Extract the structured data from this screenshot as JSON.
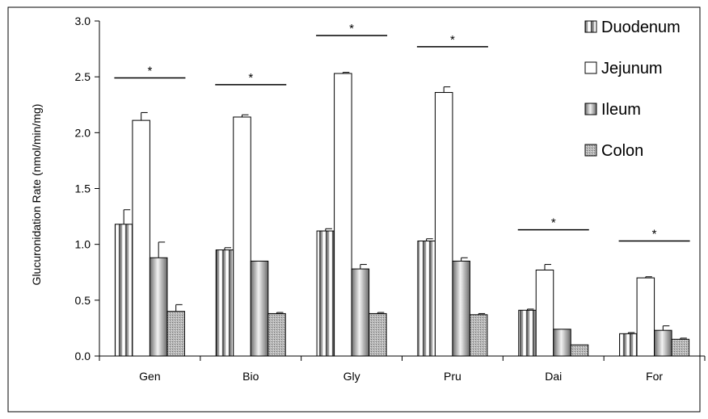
{
  "chart_data": {
    "type": "bar",
    "title": "",
    "xlabel": "",
    "ylabel": "Glucuronidation Rate (nmol/min/mg)",
    "ylim": [
      0,
      3.0
    ],
    "yticks": [
      "0.0",
      "0.5",
      "1.0",
      "1.5",
      "2.0",
      "2.5",
      "3.0"
    ],
    "grid": false,
    "legend_position": "right",
    "categories": [
      "Gen",
      "Bio",
      "Gly",
      "Pru",
      "Dai",
      "For"
    ],
    "series": [
      {
        "name": "Duodenum",
        "values": [
          1.18,
          0.95,
          1.12,
          1.03,
          0.41,
          0.2
        ],
        "errors": [
          0.13,
          0.02,
          0.02,
          0.02,
          0.01,
          0.01
        ]
      },
      {
        "name": "Jejunum",
        "values": [
          2.11,
          2.14,
          2.53,
          2.36,
          0.77,
          0.7
        ],
        "errors": [
          0.07,
          0.02,
          0.01,
          0.05,
          0.05,
          0.01
        ]
      },
      {
        "name": "Ileum",
        "values": [
          0.88,
          0.85,
          0.78,
          0.85,
          0.24,
          0.23
        ],
        "errors": [
          0.14,
          0.0,
          0.04,
          0.03,
          0.0,
          0.04
        ]
      },
      {
        "name": "Colon",
        "values": [
          0.4,
          0.38,
          0.38,
          0.37,
          0.1,
          0.15
        ],
        "errors": [
          0.06,
          0.01,
          0.01,
          0.01,
          0.0,
          0.01
        ]
      }
    ],
    "annotations": [
      {
        "category": "Gen",
        "text": "*",
        "y": 2.49
      },
      {
        "category": "Bio",
        "text": "*",
        "y": 2.43
      },
      {
        "category": "Gly",
        "text": "*",
        "y": 2.87
      },
      {
        "category": "Pru",
        "text": "*",
        "y": 2.77
      },
      {
        "category": "Dai",
        "text": "*",
        "y": 1.13
      },
      {
        "category": "For",
        "text": "*",
        "y": 1.03
      }
    ]
  }
}
